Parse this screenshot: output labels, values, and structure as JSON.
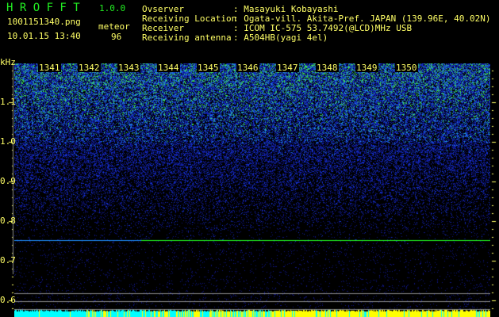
{
  "app": {
    "name": "H R O F F T",
    "version": "1.0.0"
  },
  "file": {
    "name": "1001151340.png",
    "datetime": "10.01.15 13:40"
  },
  "meteor": {
    "label": "meteor",
    "count": "96"
  },
  "info": [
    {
      "label": "Ovserver",
      "value": ": Masayuki Kobayashi"
    },
    {
      "label": "Receiving Location",
      "value": ": Ogata-vill. Akita-Pref. JAPAN (139.96E, 40.02N)"
    },
    {
      "label": "Receiver",
      "value": ": ICOM IC-575 53.7492(@LCD)MHz USB"
    },
    {
      "label": "Receiving antenna",
      "value": ": A504HB(yagi 4el)"
    }
  ],
  "spectrogram": {
    "y_unit": "kHz",
    "y_ticks": [
      "1.1",
      "1.0",
      "0.9",
      "0.8",
      "0.7",
      "0.6"
    ],
    "x_ticks": [
      "1341",
      "1342",
      "1343",
      "1344",
      "1345",
      "1346",
      "1347",
      "1348",
      "1349",
      "1350"
    ],
    "carrier_line_khz": 0.752,
    "colors": {
      "text": "#ffff66",
      "title": "#22ee22",
      "carrier": "#22ff22",
      "bar_low": "#00ffff",
      "bar_high": "#ffff00"
    }
  }
}
